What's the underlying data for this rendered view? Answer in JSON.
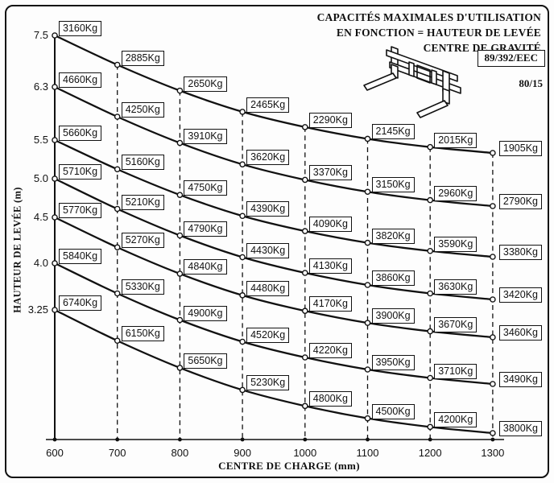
{
  "page": {
    "background": "#ffffff",
    "ink": "#111111"
  },
  "header": {
    "title_lines": [
      "CAPACITÉS MAXIMALES D'UTILISATION",
      "EN FONCTION = HAUTEUR DE LEVÉE",
      "CENTRE DE GRAVITÉ"
    ],
    "badge": "89/392/EEC",
    "reference": "80/15"
  },
  "chart_data": {
    "type": "line",
    "title": "CAPACITÉS MAXIMALES D'UTILISATION EN FONCTION = HAUTEUR DE LEVÉE / CENTRE DE GRAVITÉ",
    "xlabel": "CENTRE DE CHARGE (mm)",
    "ylabel": "HAUTEUR DE LEVÉE (m)",
    "x": [
      600,
      700,
      800,
      900,
      1000,
      1100,
      1200,
      1300
    ],
    "x_tick_labels": [
      "600",
      "700",
      "800",
      "900",
      "1000",
      "1100",
      "1200",
      "1300"
    ],
    "y_tick_labels": [
      "7.5",
      "6.3",
      "5.5",
      "5.0",
      "4.5",
      "4.0",
      "3.25"
    ],
    "xlim": [
      600,
      1300
    ],
    "unit": "Kg",
    "grid": "vertical-dashed",
    "legend_position": "none",
    "marker": "open-circle",
    "series": [
      {
        "name": "hauteur 7.5 m",
        "height_m": 7.5,
        "values": [
          3160,
          2885,
          2650,
          2465,
          2290,
          2145,
          2015,
          1905
        ]
      },
      {
        "name": "hauteur 6.3 m",
        "height_m": 6.3,
        "values": [
          4660,
          4250,
          3910,
          3620,
          3370,
          3150,
          2960,
          2790
        ]
      },
      {
        "name": "hauteur 5.5 m",
        "height_m": 5.5,
        "values": [
          5660,
          5160,
          4750,
          4390,
          4090,
          3820,
          3590,
          3380
        ]
      },
      {
        "name": "hauteur 5.0 m",
        "height_m": 5.0,
        "values": [
          5710,
          5210,
          4790,
          4430,
          4130,
          3860,
          3630,
          3420
        ]
      },
      {
        "name": "hauteur 4.5 m",
        "height_m": 4.5,
        "values": [
          5770,
          5270,
          4840,
          4480,
          4170,
          3900,
          3670,
          3460
        ]
      },
      {
        "name": "hauteur 4.0 m",
        "height_m": 4.0,
        "values": [
          5840,
          5330,
          4900,
          4520,
          4220,
          3950,
          3710,
          3490
        ]
      },
      {
        "name": "hauteur 3.25 m",
        "height_m": 3.25,
        "values": [
          6740,
          6150,
          5650,
          5230,
          4800,
          4500,
          4200,
          3800
        ]
      }
    ]
  }
}
